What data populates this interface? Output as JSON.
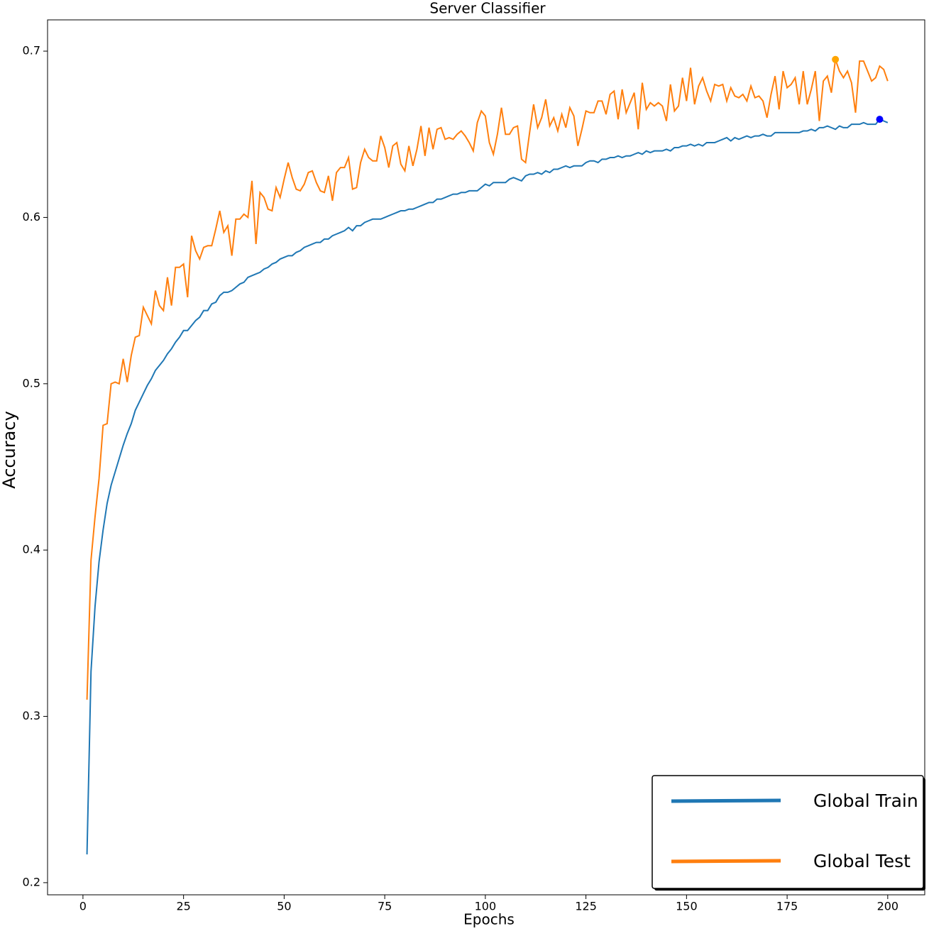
{
  "chart_data": {
    "type": "line",
    "title": "Server Classifier",
    "x_label": "Epochs",
    "y_label": "Accuracy",
    "xlim": [
      -8.8,
      209.2
    ],
    "ylim": [
      0.1927,
      0.7188
    ],
    "xticks": [
      0,
      25,
      50,
      75,
      100,
      125,
      150,
      175,
      200
    ],
    "yticks": [
      0.2,
      0.3,
      0.4,
      0.5,
      0.6,
      0.7
    ],
    "legend": "lower right",
    "x": [
      1,
      2,
      3,
      4,
      5,
      6,
      7,
      8,
      9,
      10,
      11,
      12,
      13,
      14,
      15,
      16,
      17,
      18,
      19,
      20,
      21,
      22,
      23,
      24,
      25,
      26,
      27,
      28,
      29,
      30,
      31,
      32,
      33,
      34,
      35,
      36,
      37,
      38,
      39,
      40,
      41,
      42,
      43,
      44,
      45,
      46,
      47,
      48,
      49,
      50,
      51,
      52,
      53,
      54,
      55,
      56,
      57,
      58,
      59,
      60,
      61,
      62,
      63,
      64,
      65,
      66,
      67,
      68,
      69,
      70,
      71,
      72,
      73,
      74,
      75,
      76,
      77,
      78,
      79,
      80,
      81,
      82,
      83,
      84,
      85,
      86,
      87,
      88,
      89,
      90,
      91,
      92,
      93,
      94,
      95,
      96,
      97,
      98,
      99,
      100,
      101,
      102,
      103,
      104,
      105,
      106,
      107,
      108,
      109,
      110,
      111,
      112,
      113,
      114,
      115,
      116,
      117,
      118,
      119,
      120,
      121,
      122,
      123,
      124,
      125,
      126,
      127,
      128,
      129,
      130,
      131,
      132,
      133,
      134,
      135,
      136,
      137,
      138,
      139,
      140,
      141,
      142,
      143,
      144,
      145,
      146,
      147,
      148,
      149,
      150,
      151,
      152,
      153,
      154,
      155,
      156,
      157,
      158,
      159,
      160,
      161,
      162,
      163,
      164,
      165,
      166,
      167,
      168,
      169,
      170,
      171,
      172,
      173,
      174,
      175,
      176,
      177,
      178,
      179,
      180,
      181,
      182,
      183,
      184,
      185,
      186,
      187,
      188,
      189,
      190,
      191,
      192,
      193,
      194,
      195,
      196,
      197,
      198,
      199,
      200
    ],
    "series": [
      {
        "name": "Global Train",
        "color": "#1f77b4",
        "marker": {
          "x": 198,
          "y": 0.659,
          "color": "#0000ff"
        },
        "values": [
          0.217,
          0.327,
          0.366,
          0.393,
          0.412,
          0.428,
          0.439,
          0.447,
          0.455,
          0.463,
          0.47,
          0.476,
          0.484,
          0.489,
          0.494,
          0.499,
          0.503,
          0.508,
          0.511,
          0.514,
          0.518,
          0.521,
          0.525,
          0.528,
          0.532,
          0.532,
          0.535,
          0.538,
          0.54,
          0.544,
          0.544,
          0.548,
          0.549,
          0.553,
          0.555,
          0.555,
          0.556,
          0.558,
          0.56,
          0.561,
          0.564,
          0.565,
          0.566,
          0.567,
          0.569,
          0.57,
          0.572,
          0.573,
          0.575,
          0.576,
          0.577,
          0.577,
          0.579,
          0.58,
          0.582,
          0.583,
          0.584,
          0.585,
          0.585,
          0.587,
          0.587,
          0.589,
          0.59,
          0.591,
          0.592,
          0.594,
          0.592,
          0.595,
          0.595,
          0.597,
          0.598,
          0.599,
          0.599,
          0.599,
          0.6,
          0.601,
          0.602,
          0.603,
          0.604,
          0.604,
          0.605,
          0.605,
          0.606,
          0.607,
          0.608,
          0.609,
          0.609,
          0.611,
          0.611,
          0.612,
          0.613,
          0.614,
          0.614,
          0.615,
          0.615,
          0.616,
          0.616,
          0.616,
          0.618,
          0.62,
          0.619,
          0.621,
          0.621,
          0.621,
          0.621,
          0.623,
          0.624,
          0.623,
          0.622,
          0.625,
          0.626,
          0.626,
          0.627,
          0.626,
          0.628,
          0.627,
          0.629,
          0.629,
          0.63,
          0.631,
          0.63,
          0.631,
          0.631,
          0.631,
          0.633,
          0.634,
          0.634,
          0.633,
          0.635,
          0.635,
          0.636,
          0.636,
          0.637,
          0.636,
          0.637,
          0.637,
          0.638,
          0.639,
          0.638,
          0.64,
          0.639,
          0.64,
          0.64,
          0.64,
          0.641,
          0.64,
          0.642,
          0.642,
          0.643,
          0.643,
          0.644,
          0.643,
          0.644,
          0.643,
          0.645,
          0.645,
          0.645,
          0.646,
          0.647,
          0.648,
          0.646,
          0.648,
          0.647,
          0.648,
          0.649,
          0.648,
          0.649,
          0.649,
          0.65,
          0.649,
          0.649,
          0.651,
          0.651,
          0.651,
          0.651,
          0.651,
          0.651,
          0.651,
          0.652,
          0.652,
          0.653,
          0.652,
          0.654,
          0.654,
          0.655,
          0.654,
          0.653,
          0.655,
          0.654,
          0.654,
          0.656,
          0.656,
          0.656,
          0.657,
          0.656,
          0.656,
          0.656,
          0.659,
          0.658,
          0.657
        ]
      },
      {
        "name": "Global Test",
        "color": "#ff7f0e",
        "marker": {
          "x": 187,
          "y": 0.695,
          "color": "#ffa500"
        },
        "values": [
          0.31,
          0.394,
          0.42,
          0.443,
          0.475,
          0.476,
          0.5,
          0.501,
          0.5,
          0.515,
          0.501,
          0.517,
          0.528,
          0.529,
          0.546,
          0.541,
          0.536,
          0.556,
          0.547,
          0.544,
          0.564,
          0.547,
          0.57,
          0.57,
          0.572,
          0.552,
          0.589,
          0.58,
          0.575,
          0.582,
          0.583,
          0.583,
          0.593,
          0.604,
          0.591,
          0.595,
          0.577,
          0.599,
          0.599,
          0.602,
          0.6,
          0.622,
          0.584,
          0.615,
          0.612,
          0.605,
          0.604,
          0.618,
          0.612,
          0.623,
          0.633,
          0.624,
          0.617,
          0.616,
          0.62,
          0.627,
          0.628,
          0.621,
          0.616,
          0.615,
          0.625,
          0.61,
          0.627,
          0.63,
          0.63,
          0.636,
          0.617,
          0.618,
          0.633,
          0.641,
          0.636,
          0.634,
          0.634,
          0.649,
          0.642,
          0.63,
          0.643,
          0.645,
          0.632,
          0.628,
          0.643,
          0.631,
          0.641,
          0.655,
          0.637,
          0.654,
          0.641,
          0.653,
          0.654,
          0.647,
          0.648,
          0.647,
          0.65,
          0.652,
          0.649,
          0.645,
          0.64,
          0.657,
          0.664,
          0.661,
          0.645,
          0.638,
          0.65,
          0.666,
          0.65,
          0.65,
          0.654,
          0.655,
          0.635,
          0.633,
          0.651,
          0.668,
          0.654,
          0.66,
          0.671,
          0.655,
          0.66,
          0.652,
          0.662,
          0.654,
          0.666,
          0.661,
          0.643,
          0.653,
          0.664,
          0.663,
          0.663,
          0.67,
          0.67,
          0.662,
          0.674,
          0.676,
          0.659,
          0.677,
          0.663,
          0.669,
          0.675,
          0.653,
          0.681,
          0.665,
          0.669,
          0.667,
          0.669,
          0.667,
          0.658,
          0.68,
          0.664,
          0.667,
          0.684,
          0.67,
          0.69,
          0.668,
          0.679,
          0.684,
          0.676,
          0.67,
          0.68,
          0.679,
          0.68,
          0.67,
          0.678,
          0.673,
          0.672,
          0.674,
          0.67,
          0.679,
          0.672,
          0.673,
          0.67,
          0.66,
          0.674,
          0.685,
          0.665,
          0.688,
          0.678,
          0.68,
          0.684,
          0.668,
          0.688,
          0.668,
          0.677,
          0.688,
          0.658,
          0.682,
          0.685,
          0.675,
          0.695,
          0.688,
          0.684,
          0.688,
          0.681,
          0.663,
          0.694,
          0.694,
          0.688,
          0.682,
          0.684,
          0.691,
          0.689,
          0.682
        ]
      }
    ]
  }
}
